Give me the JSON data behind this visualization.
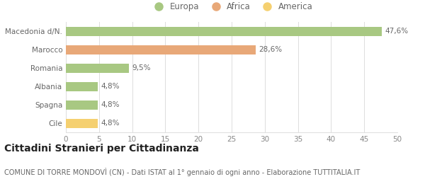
{
  "categories": [
    "Macedonia d/N.",
    "Marocco",
    "Romania",
    "Albania",
    "Spagna",
    "Cile"
  ],
  "values": [
    47.6,
    28.6,
    9.5,
    4.8,
    4.8,
    4.8
  ],
  "labels": [
    "47,6%",
    "28,6%",
    "9,5%",
    "4,8%",
    "4,8%",
    "4,8%"
  ],
  "bar_colors": [
    "#a8c882",
    "#e8a878",
    "#a8c882",
    "#a8c882",
    "#a8c882",
    "#f5d070"
  ],
  "legend_items": [
    {
      "label": "Europa",
      "color": "#a8c882"
    },
    {
      "label": "Africa",
      "color": "#e8a878"
    },
    {
      "label": "America",
      "color": "#f5d070"
    }
  ],
  "xlim": [
    0,
    50
  ],
  "xticks": [
    0,
    5,
    10,
    15,
    20,
    25,
    30,
    35,
    40,
    45,
    50
  ],
  "title": "Cittadini Stranieri per Cittadinanza",
  "subtitle": "COMUNE DI TORRE MONDOVÌ (CN) - Dati ISTAT al 1° gennaio di ogni anno - Elaborazione TUTTITALIA.IT",
  "background_color": "#ffffff",
  "grid_color": "#dddddd",
  "label_fontsize": 7.5,
  "tick_fontsize": 7.5,
  "title_fontsize": 10,
  "subtitle_fontsize": 7,
  "legend_fontsize": 8.5,
  "bar_height": 0.5,
  "value_label_color": "#666666",
  "ytick_color": "#666666",
  "xtick_color": "#888888"
}
